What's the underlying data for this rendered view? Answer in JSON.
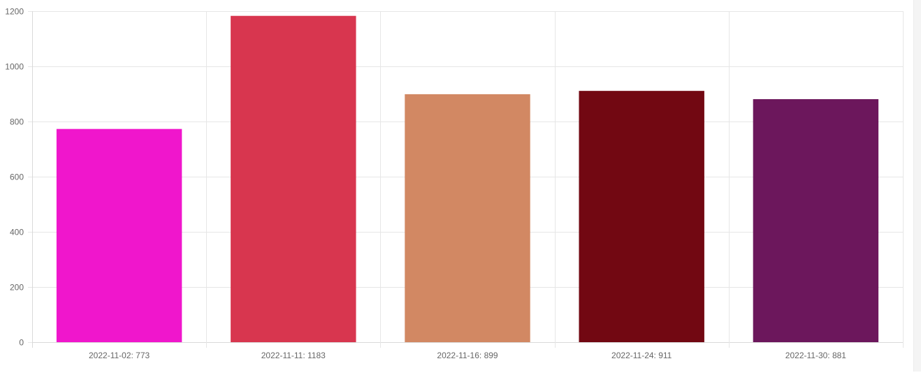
{
  "colors": {
    "grid": "#e6e6e6",
    "axis": "#d9d9d9",
    "tick_text": "#666666",
    "background": "#ffffff"
  },
  "chart_data": {
    "type": "bar",
    "categories": [
      "2022-11-02: 773",
      "2022-11-11: 1183",
      "2022-11-16: 899",
      "2022-11-24: 911",
      "2022-11-30: 881"
    ],
    "values": [
      773,
      1183,
      899,
      911,
      881
    ],
    "bar_colors": [
      "#f016cc",
      "#d8364f",
      "#d28863",
      "#720812",
      "#6c175c"
    ],
    "ylim": [
      0,
      1200
    ],
    "yticks": [
      0,
      200,
      400,
      600,
      800,
      1000,
      1200
    ],
    "grid": true,
    "legend": "none",
    "title": "",
    "xlabel": "",
    "ylabel": ""
  }
}
